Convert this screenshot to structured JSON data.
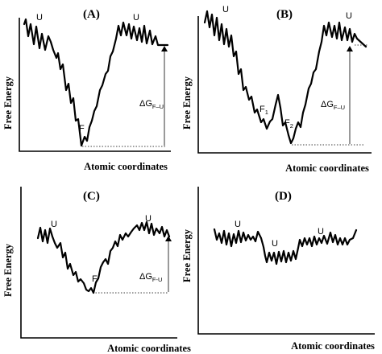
{
  "panels": [
    {
      "id": "A",
      "label": "(A)",
      "ylabel": "Free Energy",
      "xlabel": "Atomic coordinates",
      "states": [
        "U",
        "U",
        "F"
      ],
      "delta": {
        "symbol": "ΔG",
        "subscript": "F–U"
      }
    },
    {
      "id": "B",
      "label": "(B)",
      "ylabel": "Free Energy",
      "xlabel": "Atomic coordinates",
      "states": [
        "U",
        "U",
        "F",
        "1",
        "F",
        "2"
      ],
      "delta": {
        "symbol": "ΔG",
        "subscript": "F–U"
      }
    },
    {
      "id": "C",
      "label": "(C)",
      "ylabel": "Free Energy",
      "xlabel": "Atomic coordinates",
      "states": [
        "U",
        "U",
        "F"
      ],
      "delta": {
        "symbol": "ΔG",
        "subscript": "F-U"
      }
    },
    {
      "id": "D",
      "label": "(D)",
      "ylabel": "Free Energy",
      "xlabel": "Atomic coordinates",
      "states": [
        "U",
        "U",
        "U"
      ]
    }
  ]
}
